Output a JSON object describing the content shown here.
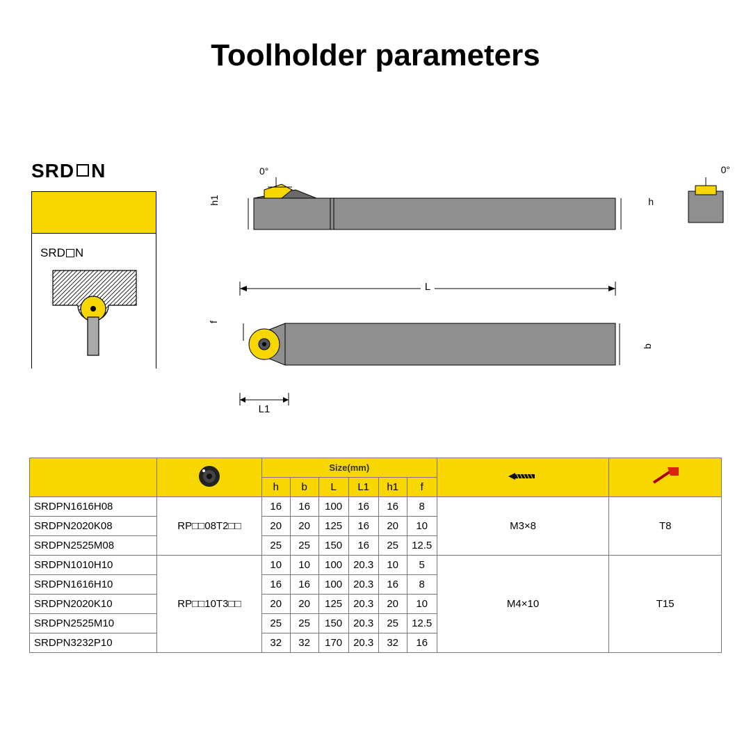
{
  "title": "Toolholder parameters",
  "model_code_parts": [
    "SRD",
    "N"
  ],
  "card_label_parts": [
    "SRD",
    "N"
  ],
  "drawing_labels": {
    "angle": "0°",
    "h1": "h1",
    "h": "h",
    "L": "L",
    "L1": "L1",
    "b": "b",
    "f": "f"
  },
  "colors": {
    "accent": "#f8d600",
    "steel": "#8f8f8f",
    "steel_dark": "#6a6a6a",
    "line": "#222222"
  },
  "table": {
    "header": {
      "size_group": "Size(mm)",
      "dims": [
        "h",
        "b",
        "L",
        "L1",
        "h1",
        "f"
      ]
    },
    "groups": [
      {
        "insert": "RP□□08T2□□",
        "screw": "M3×8",
        "wrench": "T8",
        "rows": [
          {
            "model": "SRDPN1616H08",
            "h": "16",
            "b": "16",
            "L": "100",
            "L1": "16",
            "h1": "16",
            "f": "8"
          },
          {
            "model": "SRDPN2020K08",
            "h": "20",
            "b": "20",
            "L": "125",
            "L1": "16",
            "h1": "20",
            "f": "10"
          },
          {
            "model": "SRDPN2525M08",
            "h": "25",
            "b": "25",
            "L": "150",
            "L1": "16",
            "h1": "25",
            "f": "12.5"
          }
        ]
      },
      {
        "insert": "RP□□10T3□□",
        "screw": "M4×10",
        "wrench": "T15",
        "rows": [
          {
            "model": "SRDPN1010H10",
            "h": "10",
            "b": "10",
            "L": "100",
            "L1": "20.3",
            "h1": "10",
            "f": "5"
          },
          {
            "model": "SRDPN1616H10",
            "h": "16",
            "b": "16",
            "L": "100",
            "L1": "20.3",
            "h1": "16",
            "f": "8"
          },
          {
            "model": "SRDPN2020K10",
            "h": "20",
            "b": "20",
            "L": "125",
            "L1": "20.3",
            "h1": "20",
            "f": "10"
          },
          {
            "model": "SRDPN2525M10",
            "h": "25",
            "b": "25",
            "L": "150",
            "L1": "20.3",
            "h1": "25",
            "f": "12.5"
          },
          {
            "model": "SRDPN3232P10",
            "h": "32",
            "b": "32",
            "L": "170",
            "L1": "20.3",
            "h1": "32",
            "f": "16"
          }
        ]
      }
    ]
  }
}
